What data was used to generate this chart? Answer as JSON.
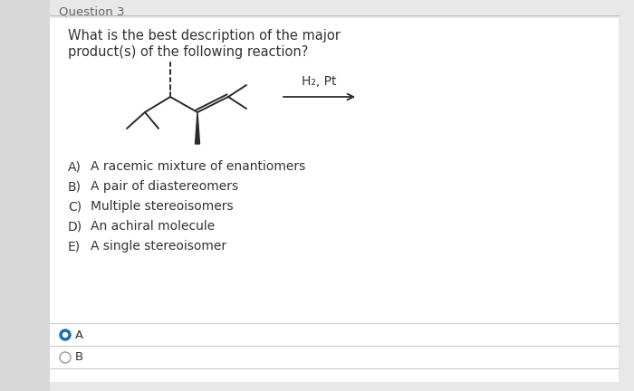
{
  "bg_color": "#e8e8e8",
  "panel_color": "#f5f5f5",
  "header_text": "Question 3",
  "question_line1": "What is the best description of the major",
  "question_line2": "product(s) of the following reaction?",
  "reagent_label": "H₂, Pt",
  "options": [
    [
      "A)",
      "A racemic mixture of enantiomers"
    ],
    [
      "B)",
      "A pair of diastereomers"
    ],
    [
      "C)",
      "Multiple stereoisomers"
    ],
    [
      "D)",
      "An achiral molecule"
    ],
    [
      "E)",
      "A single stereoisomer"
    ]
  ],
  "selected_color": "#1a6fad",
  "text_color": "#333333",
  "header_color": "#666666",
  "font_size_question": 10.5,
  "font_size_options": 10,
  "font_size_header": 9.5
}
